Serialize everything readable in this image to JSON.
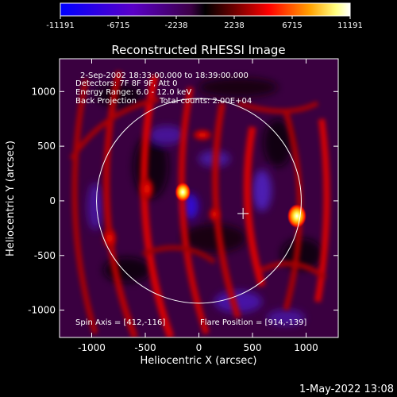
{
  "colorbar": {
    "ticks": [
      "-11191",
      "-6715",
      "-2238",
      "2238",
      "6715",
      "11191"
    ],
    "range": [
      -11191,
      11191
    ]
  },
  "chart_data": {
    "type": "heatmap",
    "title": "Reconstructed RHESSI Image",
    "xlabel": "Heliocentric X (arcsec)",
    "ylabel": "Heliocentric Y (arcsec)",
    "xlim": [
      -1300,
      1300
    ],
    "ylim": [
      -1250,
      1300
    ],
    "x_ticks": [
      "-1000",
      "-500",
      "0",
      "500",
      "1000"
    ],
    "y_ticks": [
      "1000",
      "500",
      "0",
      "-500",
      "-1000"
    ],
    "solar_disk": {
      "center": [
        0,
        0
      ],
      "radius_arcsec": 955
    },
    "sources": [
      {
        "x": 914,
        "y": -139,
        "value": 11191
      },
      {
        "x": -150,
        "y": 80,
        "value": 7000
      }
    ],
    "spin_axis": [
      412,
      -116
    ],
    "annotations": [
      "2-Sep-2002 18:33:00.000 to 18:39:00.000",
      "Detectors: 7F 8F 9F, Att 0",
      "Energy Range: 6.0 - 12.0 keV",
      "Back Projection",
      "Total counts: 2.00E+04"
    ],
    "footer_left": "Spin Axis = [412,-116]",
    "footer_right": "Flare Position = [914,-139]",
    "grid": false
  },
  "timestamp": "1-May-2022 13:08"
}
